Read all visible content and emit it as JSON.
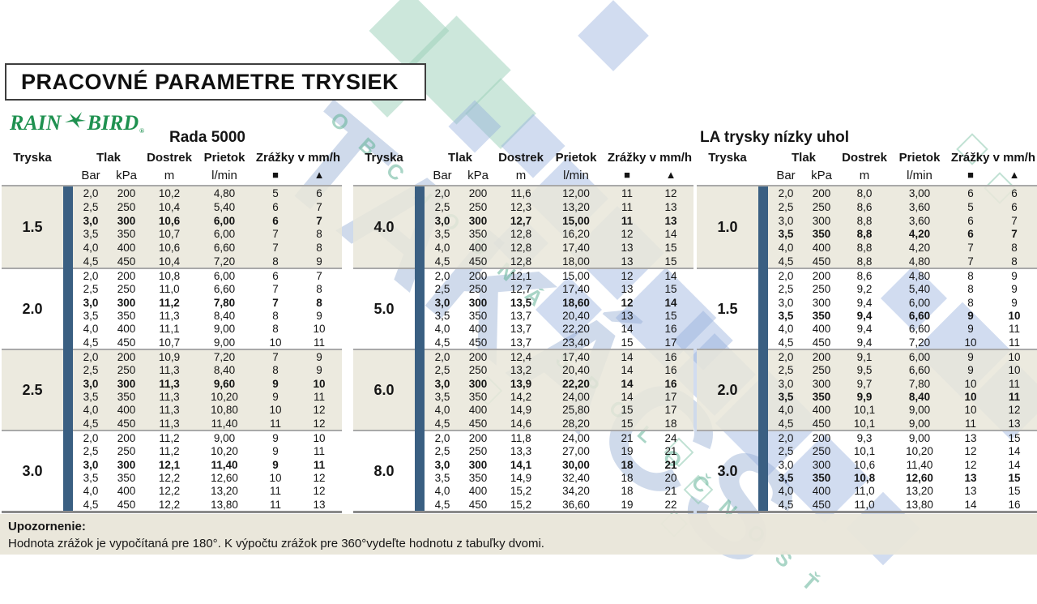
{
  "page": {
    "title": "PRACOVNÉ PARAMETRE TRYSIEK"
  },
  "logo": {
    "brand_left": "RAIN",
    "brand_right": "BIRD",
    "reg": "®",
    "bird_icon": "rainbird-bird-icon",
    "green": "#1f9150"
  },
  "columns": {
    "tryska": "Tryska",
    "tlak": "Tlak",
    "dostrek": "Dostrek",
    "prietok": "Prietok",
    "zrazky": "Zrážky v mm/h",
    "bar": "Bar",
    "kpa": "kPa",
    "m": "m",
    "lmin": "l/min",
    "square": "■",
    "triangle": "▲"
  },
  "tables": [
    {
      "title": "Rada 5000",
      "bold_row": 2,
      "groups": [
        {
          "nozzle": "1.5",
          "rows": [
            [
              "2,0",
              "200",
              "10,2",
              "4,80",
              "5",
              "6"
            ],
            [
              "2,5",
              "250",
              "10,4",
              "5,40",
              "6",
              "7"
            ],
            [
              "3,0",
              "300",
              "10,6",
              "6,00",
              "6",
              "7"
            ],
            [
              "3,5",
              "350",
              "10,7",
              "6,00",
              "7",
              "8"
            ],
            [
              "4,0",
              "400",
              "10,6",
              "6,60",
              "7",
              "8"
            ],
            [
              "4,5",
              "450",
              "10,4",
              "7,20",
              "8",
              "9"
            ]
          ]
        },
        {
          "nozzle": "2.0",
          "rows": [
            [
              "2,0",
              "200",
              "10,8",
              "6,00",
              "6",
              "7"
            ],
            [
              "2,5",
              "250",
              "11,0",
              "6,60",
              "7",
              "8"
            ],
            [
              "3,0",
              "300",
              "11,2",
              "7,80",
              "7",
              "8"
            ],
            [
              "3,5",
              "350",
              "11,3",
              "8,40",
              "8",
              "9"
            ],
            [
              "4,0",
              "400",
              "11,1",
              "9,00",
              "8",
              "10"
            ],
            [
              "4,5",
              "450",
              "10,7",
              "9,00",
              "10",
              "11"
            ]
          ]
        },
        {
          "nozzle": "2.5",
          "rows": [
            [
              "2,0",
              "200",
              "10,9",
              "7,20",
              "7",
              "9"
            ],
            [
              "2,5",
              "250",
              "11,3",
              "8,40",
              "8",
              "9"
            ],
            [
              "3,0",
              "300",
              "11,3",
              "9,60",
              "9",
              "10"
            ],
            [
              "3,5",
              "350",
              "11,3",
              "10,20",
              "9",
              "11"
            ],
            [
              "4,0",
              "400",
              "11,3",
              "10,80",
              "10",
              "12"
            ],
            [
              "4,5",
              "450",
              "11,3",
              "11,40",
              "11",
              "12"
            ]
          ]
        },
        {
          "nozzle": "3.0",
          "rows": [
            [
              "2,0",
              "200",
              "11,2",
              "9,00",
              "9",
              "10"
            ],
            [
              "2,5",
              "250",
              "11,2",
              "10,20",
              "9",
              "11"
            ],
            [
              "3,0",
              "300",
              "12,1",
              "11,40",
              "9",
              "11"
            ],
            [
              "3,5",
              "350",
              "12,2",
              "12,60",
              "10",
              "12"
            ],
            [
              "4,0",
              "400",
              "12,2",
              "13,20",
              "11",
              "12"
            ],
            [
              "4,5",
              "450",
              "12,2",
              "13,80",
              "11",
              "13"
            ]
          ]
        }
      ]
    },
    {
      "title": "",
      "bold_row": 2,
      "groups": [
        {
          "nozzle": "4.0",
          "rows": [
            [
              "2,0",
              "200",
              "11,6",
              "12,00",
              "11",
              "12"
            ],
            [
              "2,5",
              "250",
              "12,3",
              "13,20",
              "11",
              "13"
            ],
            [
              "3,0",
              "300",
              "12,7",
              "15,00",
              "11",
              "13"
            ],
            [
              "3,5",
              "350",
              "12,8",
              "16,20",
              "12",
              "14"
            ],
            [
              "4,0",
              "400",
              "12,8",
              "17,40",
              "13",
              "15"
            ],
            [
              "4,5",
              "450",
              "12,8",
              "18,00",
              "13",
              "15"
            ]
          ]
        },
        {
          "nozzle": "5.0",
          "rows": [
            [
              "2,0",
              "200",
              "12,1",
              "15,00",
              "12",
              "14"
            ],
            [
              "2,5",
              "250",
              "12,7",
              "17,40",
              "13",
              "15"
            ],
            [
              "3,0",
              "300",
              "13,5",
              "18,60",
              "12",
              "14"
            ],
            [
              "3,5",
              "350",
              "13,7",
              "20,40",
              "13",
              "15"
            ],
            [
              "4,0",
              "400",
              "13,7",
              "22,20",
              "14",
              "16"
            ],
            [
              "4,5",
              "450",
              "13,7",
              "23,40",
              "15",
              "17"
            ]
          ]
        },
        {
          "nozzle": "6.0",
          "rows": [
            [
              "2,0",
              "200",
              "12,4",
              "17,40",
              "14",
              "16"
            ],
            [
              "2,5",
              "250",
              "13,2",
              "20,40",
              "14",
              "16"
            ],
            [
              "3,0",
              "300",
              "13,9",
              "22,20",
              "14",
              "16"
            ],
            [
              "3,5",
              "350",
              "14,2",
              "24,00",
              "14",
              "17"
            ],
            [
              "4,0",
              "400",
              "14,9",
              "25,80",
              "15",
              "17"
            ],
            [
              "4,5",
              "450",
              "14,6",
              "28,20",
              "15",
              "18"
            ]
          ]
        },
        {
          "nozzle": "8.0",
          "rows": [
            [
              "2,0",
              "200",
              "11,8",
              "24,00",
              "21",
              "24"
            ],
            [
              "2,5",
              "250",
              "13,3",
              "27,00",
              "19",
              "21"
            ],
            [
              "3,0",
              "300",
              "14,1",
              "30,00",
              "18",
              "21"
            ],
            [
              "3,5",
              "350",
              "14,9",
              "32,40",
              "18",
              "20"
            ],
            [
              "4,0",
              "400",
              "15,2",
              "34,20",
              "18",
              "21"
            ],
            [
              "4,5",
              "450",
              "15,2",
              "36,60",
              "19",
              "22"
            ]
          ]
        }
      ]
    },
    {
      "title": "LA trysky nízky uhol",
      "bold_row": 3,
      "groups": [
        {
          "nozzle": "1.0",
          "rows": [
            [
              "2,0",
              "200",
              "8,0",
              "3,00",
              "6",
              "6"
            ],
            [
              "2,5",
              "250",
              "8,6",
              "3,60",
              "5",
              "6"
            ],
            [
              "3,0",
              "300",
              "8,8",
              "3,60",
              "6",
              "7"
            ],
            [
              "3,5",
              "350",
              "8,8",
              "4,20",
              "6",
              "7"
            ],
            [
              "4,0",
              "400",
              "8,8",
              "4,20",
              "7",
              "8"
            ],
            [
              "4,5",
              "450",
              "8,8",
              "4,80",
              "7",
              "8"
            ]
          ]
        },
        {
          "nozzle": "1.5",
          "rows": [
            [
              "2,0",
              "200",
              "8,6",
              "4,80",
              "8",
              "9"
            ],
            [
              "2,5",
              "250",
              "9,2",
              "5,40",
              "8",
              "9"
            ],
            [
              "3,0",
              "300",
              "9,4",
              "6,00",
              "8",
              "9"
            ],
            [
              "3,5",
              "350",
              "9,4",
              "6,60",
              "9",
              "10"
            ],
            [
              "4,0",
              "400",
              "9,4",
              "6,60",
              "9",
              "11"
            ],
            [
              "4,5",
              "450",
              "9,4",
              "7,20",
              "10",
              "11"
            ]
          ]
        },
        {
          "nozzle": "2.0",
          "rows": [
            [
              "2,0",
              "200",
              "9,1",
              "6,00",
              "9",
              "10"
            ],
            [
              "2,5",
              "250",
              "9,5",
              "6,60",
              "9",
              "10"
            ],
            [
              "3,0",
              "300",
              "9,7",
              "7,80",
              "10",
              "11"
            ],
            [
              "3,5",
              "350",
              "9,9",
              "8,40",
              "10",
              "11"
            ],
            [
              "4,0",
              "400",
              "10,1",
              "9,00",
              "10",
              "12"
            ],
            [
              "4,5",
              "450",
              "10,1",
              "9,00",
              "11",
              "13"
            ]
          ]
        },
        {
          "nozzle": "3.0",
          "rows": [
            [
              "2,0",
              "200",
              "9,3",
              "9,00",
              "13",
              "15"
            ],
            [
              "2,5",
              "250",
              "10,1",
              "10,20",
              "12",
              "14"
            ],
            [
              "3,0",
              "300",
              "10,6",
              "11,40",
              "12",
              "14"
            ],
            [
              "3,5",
              "350",
              "10,8",
              "12,60",
              "13",
              "15"
            ],
            [
              "4,0",
              "400",
              "11,0",
              "13,20",
              "13",
              "15"
            ],
            [
              "4,5",
              "450",
              "11,0",
              "13,80",
              "14",
              "16"
            ]
          ]
        }
      ]
    }
  ],
  "footer": {
    "heading": "Upozornenie:",
    "text": "Hodnota zrážok je vypočítaná pre 180°. K výpočtu zrážok pre 360°vydeľte hodnotu z tabuľky dvomi."
  },
  "watermark": {
    "big": "TAKÁCS",
    "line1": "OBCHODNÁ",
    "line2": "SPOLOČNOSŤ"
  },
  "colors": {
    "table_bar": "#3a5f82",
    "group_bg": "#e9e6d9",
    "divider": "#a9a9a9",
    "rainbird_green": "#1f9150",
    "watermark_blue": "#c7d5ec",
    "watermark_teal": "#cfe8dc"
  }
}
